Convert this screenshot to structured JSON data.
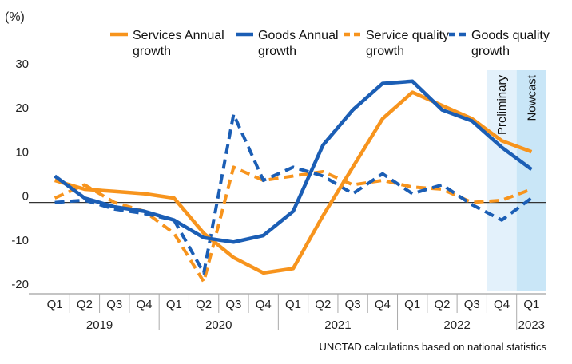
{
  "chart_data": {
    "type": "line",
    "unit_label": "(%)",
    "ylim": [
      -20,
      30
    ],
    "yticks": [
      -20,
      -10,
      0,
      10,
      20,
      30
    ],
    "ytick_labels": [
      "-20",
      "-10",
      "0",
      "10",
      "20",
      "30"
    ],
    "categories": [
      "Q1",
      "Q2",
      "Q3",
      "Q4",
      "Q1",
      "Q2",
      "Q3",
      "Q4",
      "Q1",
      "Q2",
      "Q3",
      "Q4",
      "Q1",
      "Q2",
      "Q3",
      "Q4",
      "Q1"
    ],
    "years": [
      {
        "label": "2019",
        "start": 0,
        "end": 3
      },
      {
        "label": "2020",
        "start": 4,
        "end": 7
      },
      {
        "label": "2021",
        "start": 8,
        "end": 11
      },
      {
        "label": "2022",
        "start": 12,
        "end": 15
      },
      {
        "label": "2023",
        "start": 16,
        "end": 16
      }
    ],
    "series": [
      {
        "name": "Services Annual growth",
        "color": "#F7941D",
        "dash": "solid",
        "values": [
          5,
          3,
          2.5,
          2,
          1,
          -7,
          -12.5,
          -16,
          -15,
          -3,
          8,
          19,
          25,
          22,
          19,
          14,
          11.5
        ]
      },
      {
        "name": "Goods Annual growth",
        "color": "#1B5EB5",
        "dash": "solid",
        "values": [
          6,
          1,
          -1,
          -2,
          -4,
          -8,
          -9,
          -7.5,
          -2,
          13,
          21,
          27,
          27.5,
          21,
          18.5,
          12.5,
          7.5
        ]
      },
      {
        "name": "Service quality growth",
        "color": "#F7941D",
        "dash": "dashed",
        "values": [
          1,
          4,
          0,
          -2,
          -7,
          -18,
          8,
          5,
          6,
          7,
          4,
          5,
          3.5,
          3,
          0,
          0.5,
          3
        ]
      },
      {
        "name": "Goods quality growth",
        "color": "#1B5EB5",
        "dash": "dashed",
        "values": [
          0,
          0.5,
          -1.5,
          -2.5,
          -4,
          -16,
          20,
          5,
          8,
          6,
          2,
          6.5,
          2,
          4,
          -0.5,
          -4,
          1
        ]
      }
    ],
    "bands": [
      {
        "label": "Preliminary",
        "start_index": 15,
        "color": "#E3F1FB"
      },
      {
        "label": "Nowcast",
        "start_index": 16,
        "color": "#C9E6F7"
      }
    ],
    "grid": false,
    "legend_position": "top"
  },
  "source_note": "UNCTAD calculations based on national statistics"
}
